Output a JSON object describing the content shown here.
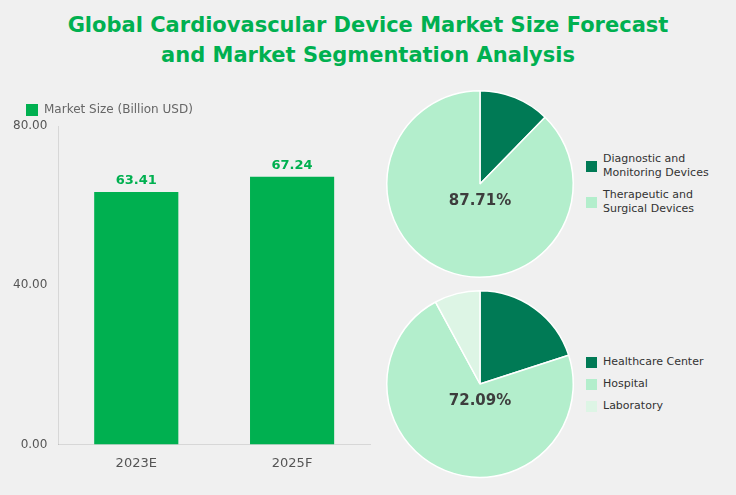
{
  "title": {
    "text": [
      "Global Cardiovascular Device Market Size Forecast",
      "and Market Segmentation Analysis"
    ],
    "color": "#00b050"
  },
  "chart_data": [
    {
      "type": "bar",
      "categories": [
        "2023E",
        "2025F"
      ],
      "series": [
        {
          "name": "Market Size (Billion USD)",
          "color": "#00b050",
          "values": [
            63.41,
            67.24
          ]
        }
      ],
      "ylim": [
        0,
        80
      ],
      "yticks": [
        {
          "value": 0,
          "label": "0.00"
        },
        {
          "value": 40,
          "label": "40.00"
        },
        {
          "value": 80,
          "label": "80.00"
        }
      ],
      "data_labels": true,
      "grid": false,
      "legend": "upper left"
    },
    {
      "type": "pie",
      "categories": [
        "Diagnostic and\nMonitoring Devices",
        "Therapeutic and\nSurgical Devices"
      ],
      "values": [
        12.29,
        87.71
      ],
      "colors": [
        "#007a55",
        "#b3eecc"
      ],
      "annotations": [
        {
          "text": "87.71%",
          "color": "#3d3d3d"
        }
      ],
      "legend": "right"
    },
    {
      "type": "pie",
      "categories": [
        "Healthcare Center",
        "Hospital",
        "Laboratory"
      ],
      "values": [
        20.0,
        72.09,
        7.91
      ],
      "colors": [
        "#007a55",
        "#b3eecc",
        "#ddf5e5"
      ],
      "annotations": [
        {
          "text": "72.09%",
          "color": "#3d3d3d"
        }
      ],
      "legend": "right"
    }
  ]
}
